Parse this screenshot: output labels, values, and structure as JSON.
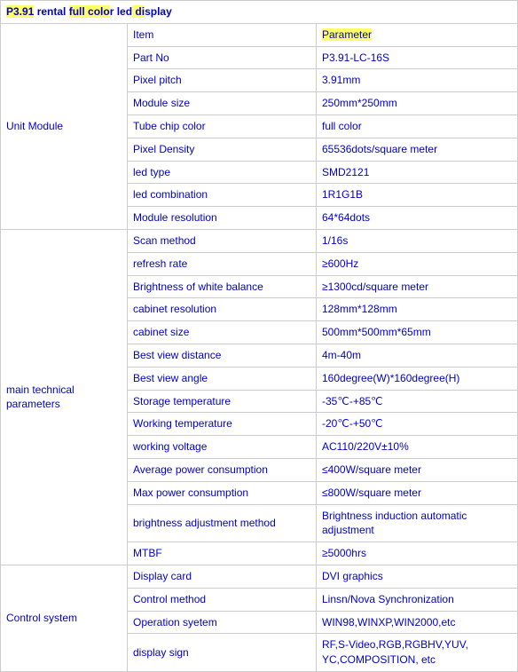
{
  "title": "P3.91 rental full color led display",
  "header": {
    "item": "Item",
    "param": "Parameter"
  },
  "sections": [
    {
      "name": "Unit Module",
      "rows": [
        {
          "k": "Part No",
          "v": "P3.91-LC-16S"
        },
        {
          "k": "Pixel pitch",
          "v": "3.91mm"
        },
        {
          "k": "Module size",
          "v": "250mm*250mm"
        },
        {
          "k": "Tube chip color",
          "v": "full color"
        },
        {
          "k": "Pixel Density",
          "v": "65536dots/square meter"
        },
        {
          "k": "led type",
          "v": "SMD2121"
        },
        {
          "k": "led combination",
          "v": "1R1G1B"
        },
        {
          "k": "Module resolution",
          "v": "64*64dots"
        }
      ]
    },
    {
      "name": " main technical parameters",
      "rows": [
        {
          "k": "Scan method",
          "v": "1/16s"
        },
        {
          "k": "refresh rate",
          "v": "≥600Hz"
        },
        {
          "k": "Brightness of white balance",
          "v": "≥1300cd/square meter"
        },
        {
          "k": "cabinet resolution",
          "v": "128mm*128mm"
        },
        {
          "k": "cabinet size",
          "v": "500mm*500mm*65mm"
        },
        {
          "k": "Best view distance",
          "v": "4m-40m"
        },
        {
          "k": "Best view angle",
          "v": "160degree(W)*160degree(H)"
        },
        {
          "k": "Storage temperature",
          "v": "-35℃-+85℃"
        },
        {
          "k": "Working temperature",
          "v": "-20℃-+50℃"
        },
        {
          "k": "working voltage",
          "v": "AC110/220V±10%"
        },
        {
          "k": "Average power consumption",
          "v": "≤400W/square meter"
        },
        {
          "k": "Max power consumption",
          "v": "≤800W/square meter"
        },
        {
          "k": "brightness adjustment method",
          "v": "Brightness induction automatic adjustment"
        },
        {
          "k": "MTBF",
          "v": "≥5000hrs"
        }
      ]
    },
    {
      "name": "Control system",
      "rows": [
        {
          "k": "Display card",
          "v": "DVI graphics"
        },
        {
          "k": "Control method",
          "v": "Linsn/Nova Synchronization"
        },
        {
          "k": "Operation syetem",
          "v": "WIN98,WINXP,WIN2000,etc"
        },
        {
          "k": "display sign",
          "v": "RF,S-Video,RGB,RGBHV,YUV, YC,COMPOSITION, etc"
        }
      ]
    }
  ],
  "highlight": {
    "title_ranges": [
      [
        0,
        5
      ],
      [
        13,
        22
      ],
      [
        27,
        30
      ]
    ],
    "param_ranges": [
      [
        0,
        9
      ]
    ]
  },
  "style": {
    "link_color": "#0000cc",
    "highlight_color": "#ffff66",
    "border_color": "#cccccc",
    "font_size": 12,
    "col_widths": {
      "section": 130,
      "item": 200
    }
  }
}
